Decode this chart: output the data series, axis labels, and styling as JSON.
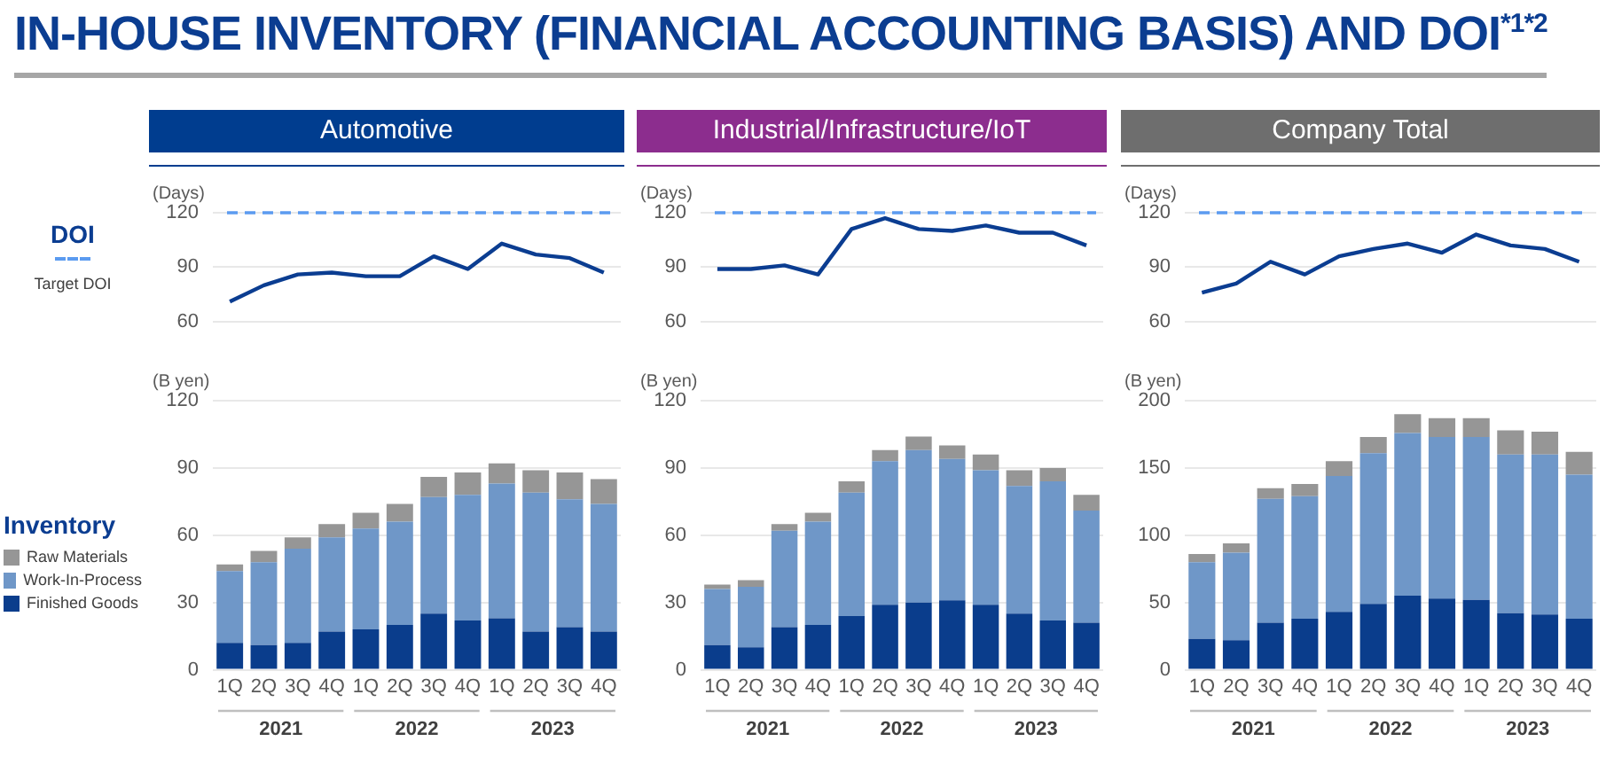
{
  "chart_data": [
    {
      "type": "other",
      "title": "IN-HOUSE INVENTORY (FINANCIAL ACCOUNTING BASIS) AND DOI$^{*1*2}$"
    },
    {
      "type": "line",
      "title": "Automotive",
      "categories": [
        null,
        null,
        null,
        null,
        null,
        null,
        null,
        null,
        null,
        null,
        null,
        null
      ],
      "ylabel": "(Days)",
      "ylim": [
        60,
        120
      ],
      "yticks": [
        60,
        90,
        120
      ],
      "grid": "y",
      "tick_labels": "y",
      "marker": "none",
      "legend": "left",
      "legend_title": "DOI",
      "series": [
        {
          "color": "#0b3d91",
          "values": [
            71,
            80,
            86,
            87,
            85,
            85,
            96,
            89,
            103,
            97,
            95,
            87
          ]
        }
      ],
      "ref_lines": [
        {
          "axis": "y",
          "value": 120,
          "label": "Target DOI",
          "color": "#5b9bf0",
          "line_style": "dashed"
        }
      ]
    },
    {
      "type": "line",
      "title": "Industrial/Infrastructure/IoT",
      "categories": [
        null,
        null,
        null,
        null,
        null,
        null,
        null,
        null,
        null,
        null,
        null,
        null
      ],
      "ylabel": "(Days)",
      "ylim": [
        60,
        120
      ],
      "yticks": [
        60,
        90,
        120
      ],
      "grid": "y",
      "tick_labels": "y",
      "marker": "none",
      "series": [
        {
          "color": "#0b3d91",
          "values": [
            89,
            89,
            91,
            86,
            111,
            117,
            111,
            110,
            113,
            109,
            109,
            102
          ]
        }
      ],
      "ref_lines": [
        {
          "axis": "y",
          "value": 120,
          "color": "#5b9bf0",
          "line_style": "dashed"
        }
      ]
    },
    {
      "type": "line",
      "title": "Company Total",
      "categories": [
        null,
        null,
        null,
        null,
        null,
        null,
        null,
        null,
        null,
        null,
        null,
        null
      ],
      "ylabel": "(Days)",
      "ylim": [
        60,
        120
      ],
      "yticks": [
        60,
        90,
        120
      ],
      "grid": "y",
      "tick_labels": "y",
      "marker": "none",
      "series": [
        {
          "color": "#0b3d91",
          "values": [
            76,
            81,
            93,
            86,
            96,
            100,
            103,
            98,
            108,
            102,
            100,
            93
          ]
        }
      ],
      "ref_lines": [
        {
          "axis": "y",
          "value": 120,
          "color": "#5b9bf0",
          "line_style": "dashed"
        }
      ]
    },
    {
      "type": "bar",
      "stacked": true,
      "categories": [
        "1Q",
        "2Q",
        "3Q",
        "4Q",
        "1Q",
        "2Q",
        "3Q",
        "4Q",
        "1Q",
        "2Q",
        "3Q",
        "4Q"
      ],
      "ylabel": "(B yen)",
      "ylim": [
        0,
        120
      ],
      "yticks": [
        0,
        30,
        60,
        90,
        120
      ],
      "grid": "y",
      "legend": "left",
      "legend_title": "Inventory",
      "annotations": [
        "2021",
        "2022",
        "2023"
      ],
      "series": [
        {
          "name": "Finished Goods",
          "color": "#0a3d8c",
          "values": [
            12,
            11,
            12,
            17,
            18,
            20,
            25,
            22,
            23,
            17,
            19,
            17
          ]
        },
        {
          "name": "Work-In-Process",
          "color": "#6f97c8",
          "values": [
            32,
            37,
            42,
            42,
            45,
            46,
            52,
            56,
            60,
            62,
            57,
            57
          ]
        },
        {
          "name": "Raw Materials",
          "color": "#969696",
          "values": [
            3,
            5,
            5,
            6,
            7,
            8,
            9,
            10,
            9,
            10,
            12,
            11
          ]
        }
      ]
    },
    {
      "type": "bar",
      "stacked": true,
      "categories": [
        "1Q",
        "2Q",
        "3Q",
        "4Q",
        "1Q",
        "2Q",
        "3Q",
        "4Q",
        "1Q",
        "2Q",
        "3Q",
        "4Q"
      ],
      "ylabel": "(B yen)",
      "ylim": [
        0,
        120
      ],
      "yticks": [
        0,
        30,
        60,
        90,
        120
      ],
      "grid": "y",
      "annotations": [
        "2021",
        "2022",
        "2023"
      ],
      "series": [
        {
          "color": "#0a3d8c",
          "values": [
            11,
            10,
            19,
            20,
            24,
            29,
            30,
            31,
            29,
            25,
            22,
            21
          ]
        },
        {
          "color": "#6f97c8",
          "values": [
            25,
            27,
            43,
            46,
            55,
            64,
            68,
            63,
            60,
            57,
            62,
            50
          ]
        },
        {
          "color": "#969696",
          "values": [
            2,
            3,
            3,
            4,
            5,
            5,
            6,
            6,
            7,
            7,
            6,
            7
          ]
        }
      ]
    },
    {
      "type": "bar",
      "stacked": true,
      "categories": [
        "1Q",
        "2Q",
        "3Q",
        "4Q",
        "1Q",
        "2Q",
        "3Q",
        "4Q",
        "1Q",
        "2Q",
        "3Q",
        "4Q"
      ],
      "ylabel": "(B yen)",
      "ylim": [
        0,
        200
      ],
      "yticks": [
        0,
        50,
        100,
        150,
        200
      ],
      "grid": "y",
      "annotations": [
        "2021",
        "2022",
        "2023"
      ],
      "series": [
        {
          "color": "#0a3d8c",
          "values": [
            23,
            22,
            35,
            38,
            43,
            49,
            55,
            53,
            52,
            42,
            41,
            38
          ]
        },
        {
          "color": "#6f97c8",
          "values": [
            57,
            65,
            92,
            91,
            101,
            112,
            121,
            120,
            121,
            118,
            119,
            107
          ]
        },
        {
          "color": "#969696",
          "values": [
            6,
            7,
            8,
            9,
            11,
            12,
            14,
            14,
            14,
            18,
            17,
            17
          ]
        }
      ]
    }
  ]
}
